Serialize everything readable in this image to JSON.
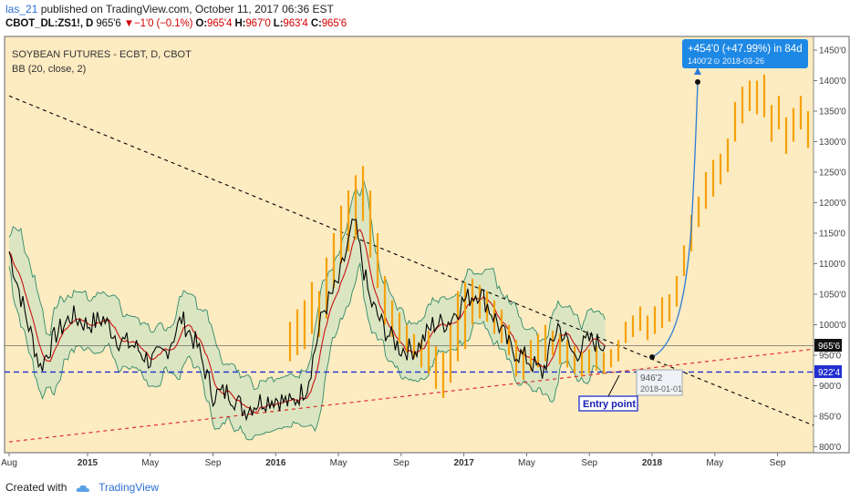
{
  "header": {
    "user": "las_21",
    "published": " published on TradingView.com, October 11, 2017 06:36 EST",
    "symbol": "CBOT_DL:ZS1!, D",
    "last": "965'6",
    "change": "−1'0 (−0.1%)",
    "open_label": "O:",
    "open": "965'4",
    "high_label": "H:",
    "high": "967'0",
    "low_label": "L:",
    "low": "963'4",
    "close_label": "C:",
    "close": "965'6"
  },
  "legend": {
    "title": "SOYBEAN FUTURES - ECBT, D, CBOT",
    "indicator": "BB (20, close, 2)"
  },
  "annotation": {
    "gain": "+454'0 (+47.99%)  in 84d",
    "target": "1400'2",
    "target_date": "2018-03-26",
    "start_price": "946'2",
    "start_date": "2018-01-01",
    "entry": "Entry point"
  },
  "price_tags": {
    "current": "965'6",
    "support": "922'4"
  },
  "footer": {
    "created": "Created with",
    "brand": "TradingView"
  },
  "colors": {
    "background": "#fdebc1",
    "price_line": "#000000",
    "bb_band": "#2f8a6a",
    "bb_fill": "#bfe0c2",
    "bb_basis": "#cc1111",
    "projection_bars": "#f5a10a",
    "resistance_line": "#000000",
    "support_line": "#e01f1f",
    "horizontal_support": "#2230d0",
    "projection_curve": "#2a7bd6",
    "gain_box": "#1e88e5"
  },
  "chart_data": {
    "type": "line",
    "title": "SOYBEAN FUTURES - ECBT, D, CBOT",
    "ylim": [
      790,
      1470
    ],
    "y_ticks": [
      "800'0",
      "850'0",
      "900'0",
      "950'0",
      "1000'0",
      "1050'0",
      "1100'0",
      "1150'0",
      "1200'0",
      "1250'0",
      "1300'0",
      "1350'0",
      "1400'0",
      "1450'0"
    ],
    "x_ticks": [
      "Aug",
      "2015",
      "May",
      "Sep",
      "2016",
      "May",
      "Sep",
      "2017",
      "May",
      "Sep",
      "2018",
      "May",
      "Sep"
    ],
    "series": [
      {
        "name": "",
        "values": [
          [
            "2014-08",
            1120
          ],
          [
            "2014-09",
            1020
          ],
          [
            "2014-10",
            930
          ],
          [
            "2014-11",
            985
          ],
          [
            "2014-12",
            1015
          ],
          [
            "2015-01",
            1000
          ],
          [
            "2015-02",
            1010
          ],
          [
            "2015-03",
            975
          ],
          [
            "2015-04",
            965
          ],
          [
            "2015-05",
            940
          ],
          [
            "2015-06",
            955
          ],
          [
            "2015-07",
            1010
          ],
          [
            "2015-08",
            965
          ],
          [
            "2015-09",
            885
          ],
          [
            "2015-10",
            890
          ],
          [
            "2015-11",
            860
          ],
          [
            "2015-12",
            875
          ],
          [
            "2016-01",
            880
          ],
          [
            "2016-02",
            870
          ],
          [
            "2016-03",
            900
          ],
          [
            "2016-04",
            1020
          ],
          [
            "2016-05",
            1070
          ],
          [
            "2016-06",
            1170
          ],
          [
            "2016-07",
            1040
          ],
          [
            "2016-08",
            990
          ],
          [
            "2016-09",
            960
          ],
          [
            "2016-10",
            960
          ],
          [
            "2016-11",
            1000
          ],
          [
            "2016-12",
            1005
          ],
          [
            "2017-01",
            1040
          ],
          [
            "2017-02",
            1055
          ],
          [
            "2017-03",
            1010
          ],
          [
            "2017-04",
            960
          ],
          [
            "2017-05",
            945
          ],
          [
            "2017-06",
            920
          ],
          [
            "2017-07",
            1000
          ],
          [
            "2017-08",
            950
          ],
          [
            "2017-09",
            975
          ],
          [
            "2017-10",
            966
          ]
        ]
      }
    ],
    "annotations": [
      {
        "label": "Entry point",
        "date": "2018-01-01",
        "value": 946
      },
      {
        "label": "target",
        "date": "2018-03-26",
        "value": 1400
      }
    ]
  }
}
